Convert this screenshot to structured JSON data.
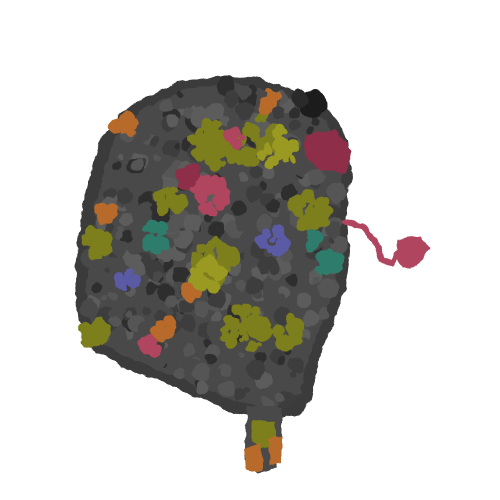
{
  "scene": {
    "background": "#ffffff",
    "subject": "molecular-surface-render",
    "palette": {
      "body": "#4a4a4a",
      "body_dark": "#2f2f2f",
      "body_light": "#5c5c5c",
      "olive": "#7d7f1c",
      "olive_light": "#9a9a22",
      "orange": "#b86a2a",
      "crimson": "#b0455e",
      "crimson_dark": "#8e2f49",
      "teal": "#2f7d6c",
      "blue": "#5a5aa5"
    }
  }
}
